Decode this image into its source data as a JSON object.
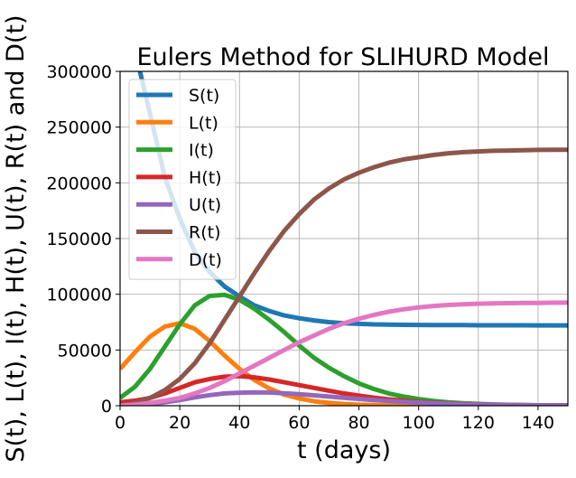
{
  "chart_data": {
    "type": "line",
    "title": "Eulers Method for SLIHURD Model",
    "xlabel": "t (days)",
    "ylabel": "S(t), L(t), I(t), H(t), U(t), R(t) and D(t)",
    "xlim": [
      0,
      150
    ],
    "ylim": [
      0,
      300000
    ],
    "x_ticks": [
      0,
      20,
      40,
      60,
      80,
      100,
      120,
      140
    ],
    "y_ticks": [
      0,
      50000,
      100000,
      150000,
      200000,
      250000,
      300000
    ],
    "grid": true,
    "legend_position": "upper-left",
    "x": [
      0,
      5,
      10,
      15,
      20,
      25,
      30,
      35,
      40,
      45,
      50,
      55,
      60,
      65,
      70,
      75,
      80,
      85,
      90,
      95,
      100,
      105,
      110,
      115,
      120,
      125,
      130,
      135,
      140,
      145,
      150
    ],
    "series": [
      {
        "name": "S(t)",
        "color": "#1f77b4",
        "values": [
          360000,
          319000,
          262000,
          205000,
          168000,
          138000,
          120000,
          107000,
          98000,
          90000,
          85000,
          81000,
          78500,
          76500,
          75000,
          74000,
          73500,
          73000,
          72800,
          72600,
          72500,
          72400,
          72300,
          72300,
          72200,
          72200,
          72200,
          72200,
          72100,
          72100,
          72100
        ]
      },
      {
        "name": "L(t)",
        "color": "#ff7f0e",
        "values": [
          33000,
          48000,
          62000,
          71000,
          74000,
          69000,
          58000,
          45000,
          33000,
          23000,
          15500,
          10000,
          6500,
          4000,
          2500,
          1500,
          900,
          550,
          330,
          200,
          120,
          70,
          40,
          25,
          15,
          9,
          5,
          3,
          2,
          1,
          1
        ]
      },
      {
        "name": "I(t)",
        "color": "#2ca02c",
        "values": [
          7000,
          17000,
          33000,
          53000,
          73000,
          90000,
          98500,
          99500,
          95000,
          87000,
          77000,
          66000,
          54000,
          43000,
          34000,
          26500,
          20000,
          15000,
          11000,
          8200,
          6000,
          4300,
          3100,
          2200,
          1600,
          1150,
          800,
          580,
          410,
          290,
          210
        ]
      },
      {
        "name": "H(t)",
        "color": "#d62728",
        "values": [
          3000,
          4500,
          7000,
          11000,
          16000,
          21000,
          24000,
          26000,
          26500,
          25500,
          23500,
          21000,
          18500,
          16000,
          13500,
          11000,
          9000,
          7200,
          5700,
          4500,
          3500,
          2700,
          2100,
          1600,
          1200,
          900,
          700,
          520,
          390,
          290,
          220
        ]
      },
      {
        "name": "U(t)",
        "color": "#9467bd",
        "values": [
          0,
          600,
          1500,
          3000,
          5000,
          7500,
          9500,
          11000,
          11700,
          12000,
          11800,
          11200,
          10300,
          9300,
          8200,
          7100,
          6100,
          5100,
          4200,
          3400,
          2800,
          2200,
          1800,
          1400,
          1100,
          850,
          650,
          500,
          380,
          290,
          220
        ]
      },
      {
        "name": "R(t)",
        "color": "#8c564b",
        "values": [
          0,
          2500,
          7000,
          14000,
          24000,
          38000,
          56000,
          77000,
          98000,
          119000,
          139000,
          157000,
          172000,
          185000,
          195000,
          203000,
          209000,
          214000,
          218000,
          221000,
          223000,
          225000,
          226500,
          227500,
          228200,
          228700,
          229000,
          229300,
          229500,
          229600,
          229700
        ]
      },
      {
        "name": "D(t)",
        "color": "#e377c2",
        "values": [
          0,
          1000,
          2500,
          4500,
          7000,
          11000,
          16000,
          22000,
          29000,
          36000,
          43000,
          50000,
          57000,
          63000,
          69000,
          74000,
          78000,
          81500,
          84300,
          86500,
          88200,
          89500,
          90400,
          91000,
          91500,
          91800,
          92000,
          92200,
          92300,
          92400,
          92500
        ]
      }
    ]
  }
}
